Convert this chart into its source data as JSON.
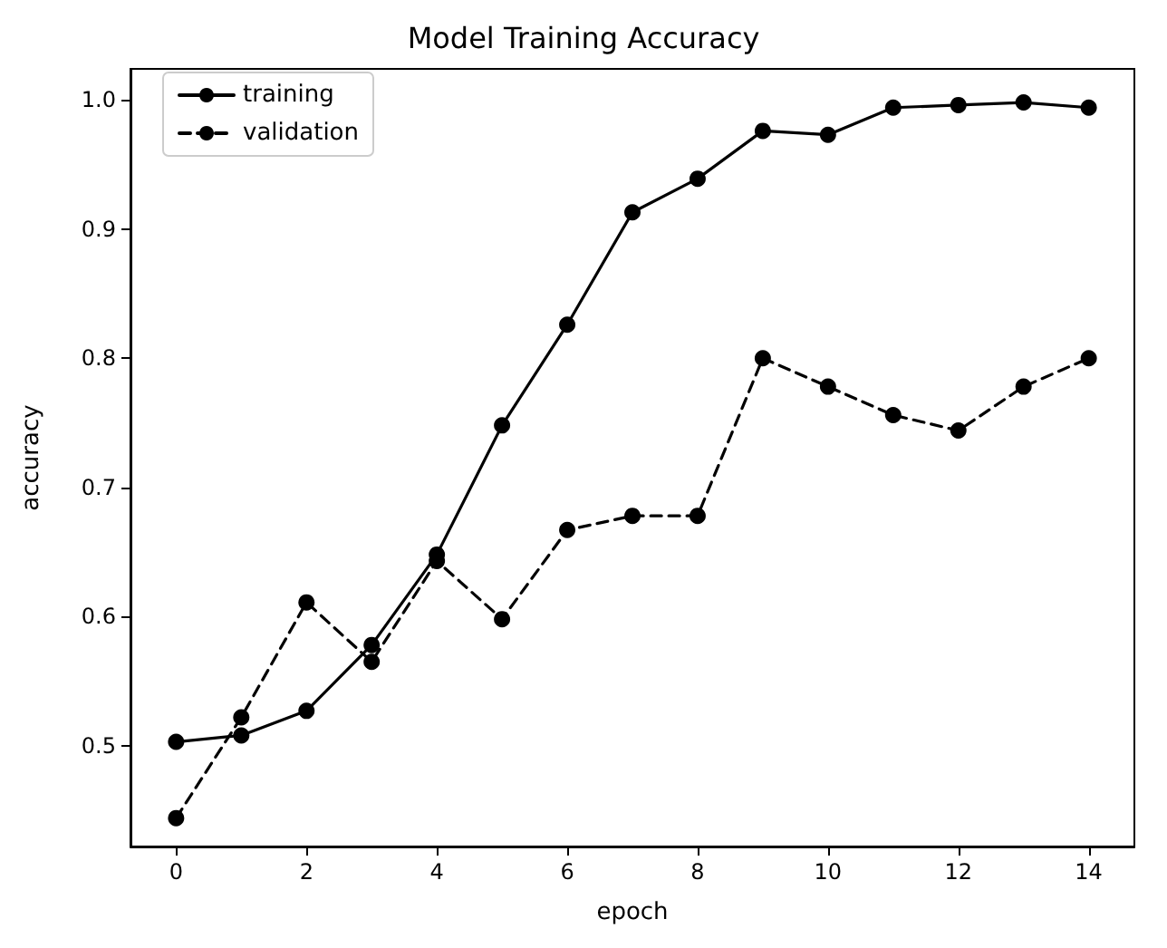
{
  "chart_data": {
    "type": "line",
    "title": "Model Training Accuracy",
    "xlabel": "epoch",
    "ylabel": "accuracy",
    "x": [
      0,
      1,
      2,
      3,
      4,
      5,
      6,
      7,
      8,
      9,
      10,
      11,
      12,
      13,
      14
    ],
    "series": [
      {
        "name": "training",
        "color": "#000000",
        "line_style": "solid",
        "values": [
          0.503,
          0.508,
          0.527,
          0.578,
          0.648,
          0.748,
          0.826,
          0.913,
          0.939,
          0.976,
          0.973,
          0.994,
          0.996,
          0.998,
          0.994
        ]
      },
      {
        "name": "validation",
        "color": "#000000",
        "line_style": "dashed",
        "values": [
          0.444,
          0.522,
          0.611,
          0.565,
          0.643,
          0.598,
          0.667,
          0.678,
          0.678,
          0.8,
          0.778,
          0.756,
          0.744,
          0.778,
          0.8
        ]
      }
    ],
    "xlim": [
      -0.7,
      14.7
    ],
    "xticks": [
      0,
      2,
      4,
      6,
      8,
      10,
      12,
      14
    ],
    "ylim": [
      0.422,
      1.024
    ],
    "yticks": [
      0.5,
      0.6,
      0.7,
      0.8,
      0.9,
      {
        "value": 1,
        "label": "1.0"
      }
    ],
    "legend": "top left",
    "marker": "circle",
    "grid": false
  }
}
